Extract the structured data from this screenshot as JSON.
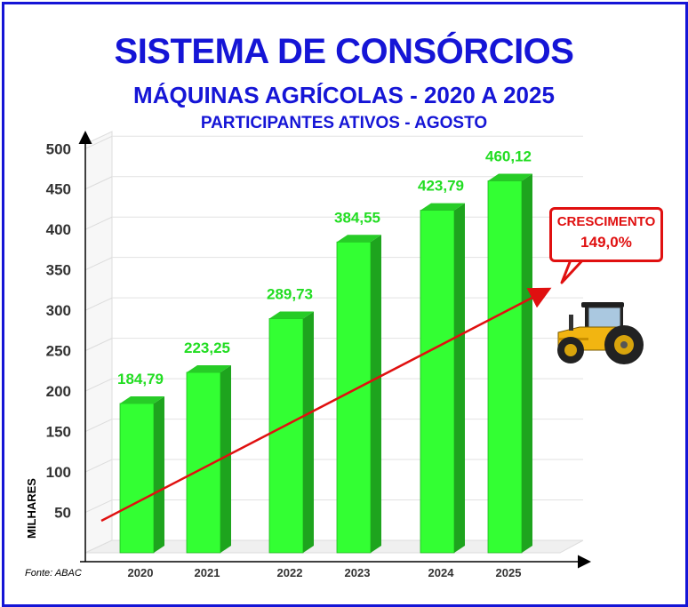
{
  "title": "SISTEMA DE CONSÓRCIOS",
  "subtitle": "MÁQUINAS AGRÍCOLAS - 2020 A 2025",
  "subtitle2": "PARTICIPANTES ATIVOS - AGOSTO",
  "source": "Fonte: ABAC",
  "callout": {
    "line1": "CRESCIMENTO",
    "line2": "149,0%",
    "color": "#e01010"
  },
  "colors": {
    "frame": "#1515d6",
    "bar": "#33ff33",
    "label": "#22dd22",
    "trend": "#e01010"
  },
  "icon": "tractor-icon",
  "chart_data": {
    "type": "bar",
    "categories": [
      "2020",
      "2021",
      "2022",
      "2023",
      "2024",
      "2025"
    ],
    "values": [
      184.79,
      223.25,
      289.73,
      384.55,
      423.79,
      460.12
    ],
    "value_labels": [
      "184,79",
      "223,25",
      "289,73",
      "384,55",
      "423,79",
      "460,12"
    ],
    "ylabel": "MILHARES",
    "yticks": [
      50,
      100,
      150,
      200,
      250,
      300,
      350,
      400,
      450,
      500
    ],
    "ylim": [
      0,
      520
    ],
    "grid": true,
    "trend_line": true
  }
}
